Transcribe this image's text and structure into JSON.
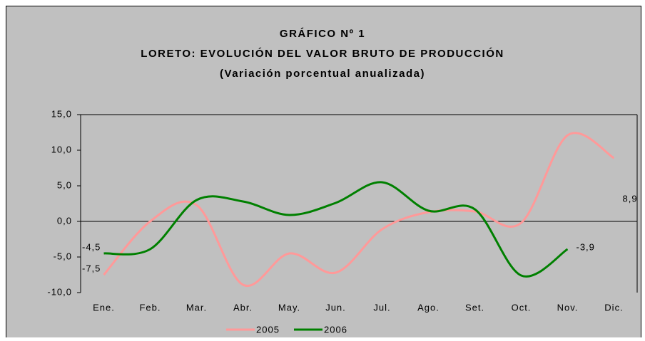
{
  "chart_data": {
    "type": "line",
    "title_lines": [
      "GRÁFICO Nº 1",
      "LORETO: EVOLUCIÓN DEL VALOR BRUTO DE PRODUCCIÓN"
    ],
    "subtitle": "(Variación porcentual anualizada)",
    "categories": [
      "Ene.",
      "Feb.",
      "Mar.",
      "Abr.",
      "May.",
      "Jun.",
      "Jul.",
      "Ago.",
      "Set.",
      "Oct.",
      "Nov.",
      "Dic."
    ],
    "series": [
      {
        "name": "2005",
        "color": "#ff9999",
        "values": [
          -7.5,
          0.0,
          2.3,
          -8.9,
          -4.5,
          -7.2,
          -1.1,
          1.3,
          1.4,
          -0.2,
          12.1,
          8.9
        ],
        "value_labels": [
          "-7,5",
          null,
          null,
          null,
          null,
          null,
          null,
          null,
          null,
          null,
          null,
          "8,9"
        ]
      },
      {
        "name": "2006",
        "color": "#008000",
        "values": [
          -4.5,
          -3.9,
          3.0,
          2.8,
          0.9,
          2.6,
          5.5,
          1.5,
          1.7,
          -7.6,
          -3.9,
          null
        ],
        "value_labels": [
          "-4,5",
          null,
          null,
          null,
          null,
          null,
          null,
          null,
          null,
          null,
          "-3,9",
          null
        ]
      }
    ],
    "ylim": [
      -10,
      15
    ],
    "yticks": [
      {
        "value": -10,
        "label": "-10,0"
      },
      {
        "value": -5,
        "label": "-5,0"
      },
      {
        "value": 0,
        "label": "0,0"
      },
      {
        "value": 5,
        "label": "5,0"
      },
      {
        "value": 10,
        "label": "10,0"
      },
      {
        "value": 15,
        "label": "15,0"
      }
    ],
    "legend": "bottom"
  }
}
